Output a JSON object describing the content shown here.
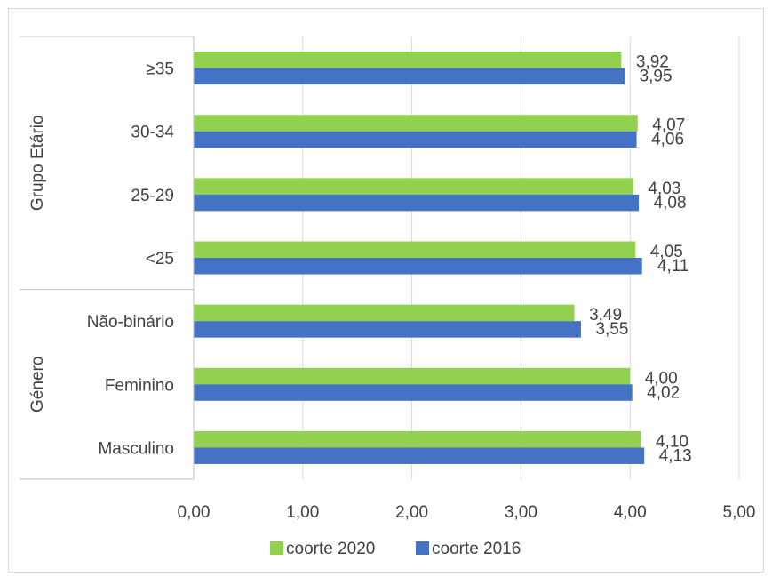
{
  "chart_data": {
    "type": "bar",
    "orientation": "horizontal",
    "groups": [
      {
        "label": "Grupo Etário",
        "categories": [
          "≥35",
          "30-34",
          "25-29",
          "<25"
        ]
      },
      {
        "label": "Género",
        "categories": [
          "Não-binário",
          "Feminino",
          "Masculino"
        ]
      }
    ],
    "categories": [
      "≥35",
      "30-34",
      "25-29",
      "<25",
      "Não-binário",
      "Feminino",
      "Masculino"
    ],
    "series": [
      {
        "name": "coorte 2020",
        "color": "#92d050",
        "values": [
          3.92,
          4.07,
          4.03,
          4.05,
          3.49,
          4.0,
          4.1
        ],
        "labels": [
          "3,92",
          "4,07",
          "4,03",
          "4,05",
          "3,49",
          "4,00",
          "4,10"
        ]
      },
      {
        "name": "coorte 2016",
        "color": "#4472c4",
        "values": [
          3.95,
          4.06,
          4.08,
          4.11,
          3.55,
          4.02,
          4.13
        ],
        "labels": [
          "3,95",
          "4,06",
          "4,08",
          "4,11",
          "3,55",
          "4,02",
          "4,13"
        ]
      }
    ],
    "xlim": [
      0,
      5
    ],
    "x_ticks": [
      0,
      1,
      2,
      3,
      4,
      5
    ],
    "x_tick_labels": [
      "0,00",
      "1,00",
      "2,00",
      "3,00",
      "4,00",
      "5,00"
    ],
    "grid": true,
    "legend_position": "bottom"
  }
}
